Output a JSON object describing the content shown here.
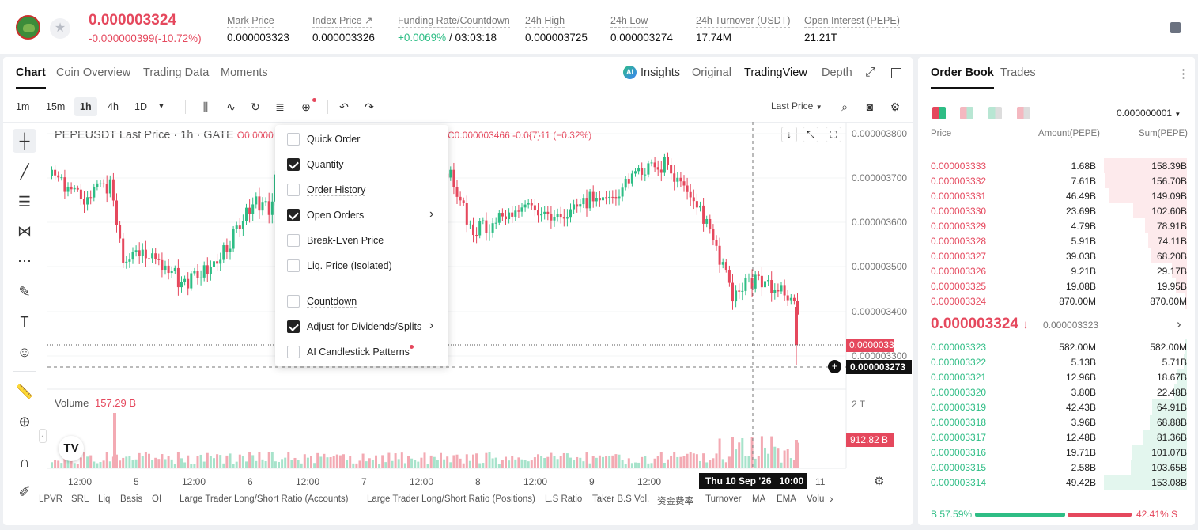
{
  "header": {
    "last_price": "0.000003324",
    "change": "-0.000000399(-10.72%)",
    "stats": [
      {
        "label": "Mark Price",
        "value": "0.000003323"
      },
      {
        "label": "Index Price ↗",
        "value": "0.000003326"
      },
      {
        "label": "Funding Rate/Countdown",
        "value_green": "+0.0069%",
        "value": " / 03:03:18"
      },
      {
        "label": "24h High",
        "value": "0.000003725"
      },
      {
        "label": "24h Low",
        "value": "0.000003274"
      },
      {
        "label": "24h Turnover (USDT)",
        "value": "17.74M"
      },
      {
        "label": "Open Interest (PEPE)",
        "value": "21.21T"
      }
    ]
  },
  "chart_tabs": [
    "Chart",
    "Coin Overview",
    "Trading Data",
    "Moments"
  ],
  "view_tabs": {
    "insights": "Insights",
    "original": "Original",
    "tradingview": "TradingView",
    "depth": "Depth"
  },
  "timeframes": [
    "1m",
    "15m",
    "1h",
    "4h",
    "1D"
  ],
  "price_type": "Last Price",
  "legend": {
    "symbol": "PEPEUSDT Last Price · 1h · GATE",
    "o": "O0.0000",
    "c": "C0.000003466",
    "chg": "-0.0{7}11 (−0.32%)"
  },
  "y_axis": [
    "0.000003800",
    "0.000003700",
    "0.000003600",
    "0.000003500",
    "0.000003400",
    "0.000003300"
  ],
  "y_price_tag": "0.000003324",
  "y_cursor_tag": "0.000003273",
  "volume": {
    "label": "Volume",
    "value": "157.29 B",
    "axis": "2 T",
    "tag": "912.82 B"
  },
  "x_axis": [
    "12:00",
    "5",
    "12:00",
    "6",
    "12:00",
    "7",
    "12:00",
    "8",
    "12:00",
    "9",
    "12:00",
    "11"
  ],
  "x_cursor": "Thu 10 Sep '26   10:00",
  "bottom_tools": [
    "LPVR",
    "SRL",
    "Liq",
    "Basis",
    "OI",
    "Large Trader Long/Short Ratio (Accounts)",
    "Large Trader Long/Short Ratio (Positions)",
    "L.S Ratio",
    "Taker B.S Vol.",
    "资金费率",
    "Turnover",
    "MA",
    "EMA",
    "Volu"
  ],
  "menu": [
    {
      "label": "Quick Order",
      "checked": false
    },
    {
      "label": "Quantity",
      "checked": true
    },
    {
      "label": "Order History",
      "checked": false
    },
    {
      "label": "Open Orders",
      "checked": true,
      "arrow": true
    },
    {
      "label": "Break-Even Price",
      "checked": false
    },
    {
      "label": "Liq. Price (Isolated)",
      "checked": false
    },
    {
      "label": "Countdown",
      "checked": false
    },
    {
      "label": "Adjust for Dividends/Splits",
      "checked": true,
      "arrow": true
    },
    {
      "label": "AI Candlestick Patterns",
      "checked": false
    }
  ],
  "orderbook": {
    "tabs": [
      "Order Book",
      "Trades"
    ],
    "precision": "0.000000001",
    "cols": [
      "Price",
      "Amount(PEPE)",
      "Sum(PEPE)"
    ],
    "asks": [
      {
        "p": "0.000003333",
        "a": "1.68B",
        "s": "158.39B",
        "d": 1.0
      },
      {
        "p": "0.000003332",
        "a": "7.61B",
        "s": "156.70B",
        "d": 0.99
      },
      {
        "p": "0.000003331",
        "a": "46.49B",
        "s": "149.09B",
        "d": 0.94
      },
      {
        "p": "0.000003330",
        "a": "23.69B",
        "s": "102.60B",
        "d": 0.65
      },
      {
        "p": "0.000003329",
        "a": "4.79B",
        "s": "78.91B",
        "d": 0.5
      },
      {
        "p": "0.000003328",
        "a": "5.91B",
        "s": "74.11B",
        "d": 0.47
      },
      {
        "p": "0.000003327",
        "a": "39.03B",
        "s": "68.20B",
        "d": 0.43
      },
      {
        "p": "0.000003326",
        "a": "9.21B",
        "s": "29.17B",
        "d": 0.18
      },
      {
        "p": "0.000003325",
        "a": "19.08B",
        "s": "19.95B",
        "d": 0.13
      },
      {
        "p": "0.000003324",
        "a": "870.00M",
        "s": "870.00M",
        "d": 0.01
      }
    ],
    "mid": "0.000003324",
    "mid_ref": "0.000003323",
    "bids": [
      {
        "p": "0.000003323",
        "a": "582.00M",
        "s": "582.00M",
        "d": 0.004
      },
      {
        "p": "0.000003322",
        "a": "5.13B",
        "s": "5.71B",
        "d": 0.04
      },
      {
        "p": "0.000003321",
        "a": "12.96B",
        "s": "18.67B",
        "d": 0.12
      },
      {
        "p": "0.000003320",
        "a": "3.80B",
        "s": "22.48B",
        "d": 0.15
      },
      {
        "p": "0.000003319",
        "a": "42.43B",
        "s": "64.91B",
        "d": 0.42
      },
      {
        "p": "0.000003318",
        "a": "3.96B",
        "s": "68.88B",
        "d": 0.45
      },
      {
        "p": "0.000003317",
        "a": "12.48B",
        "s": "81.36B",
        "d": 0.53
      },
      {
        "p": "0.000003316",
        "a": "19.71B",
        "s": "101.07B",
        "d": 0.66
      },
      {
        "p": "0.000003315",
        "a": "2.58B",
        "s": "103.65B",
        "d": 0.68
      },
      {
        "p": "0.000003314",
        "a": "49.42B",
        "s": "153.08B",
        "d": 1.0
      }
    ],
    "buy_ratio": "B 57.59%",
    "sell_ratio": "42.41% S",
    "buy_frac": 0.5759
  },
  "colors": {
    "up": "#2ebd85",
    "down": "#e5485d"
  }
}
